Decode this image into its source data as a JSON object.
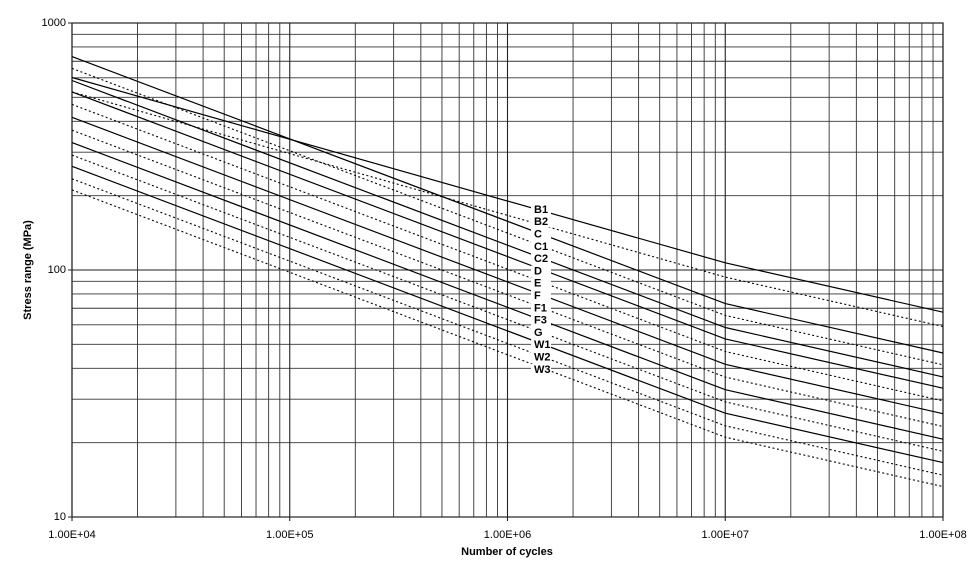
{
  "chart_data": {
    "type": "line",
    "xlabel": "Number of cycles",
    "ylabel": "Stress range (MPa)",
    "xscale": "log",
    "yscale": "log",
    "grid": true,
    "x": [
      10000,
      10000000,
      100000000
    ],
    "xlim": [
      10000,
      100000000
    ],
    "ylim": [
      10,
      1000
    ],
    "xticks": [
      {
        "value": 10000,
        "label": "1.00E+04"
      },
      {
        "value": 100000,
        "label": "1.00E+05"
      },
      {
        "value": 1000000,
        "label": "1.00E+06"
      },
      {
        "value": 10000000,
        "label": "1.00E+07"
      },
      {
        "value": 100000000,
        "label": "1.00E+08"
      }
    ],
    "xminorticks": [
      20000,
      30000,
      40000,
      50000,
      60000,
      70000,
      80000,
      90000,
      200000,
      300000,
      400000,
      500000,
      600000,
      700000,
      800000,
      900000,
      2000000,
      3000000,
      4000000,
      5000000,
      6000000,
      7000000,
      8000000,
      9000000,
      20000000,
      30000000,
      40000000,
      50000000,
      60000000,
      70000000,
      80000000,
      90000000
    ],
    "yticks": [
      10,
      100,
      1000
    ],
    "yminorticks": [
      20,
      30,
      40,
      50,
      60,
      70,
      80,
      90,
      200,
      300,
      400,
      500,
      600,
      700,
      800,
      900
    ],
    "series": [
      {
        "name": "B1",
        "color": "#000000",
        "style": "solid",
        "values": [
          601.5,
          106.97,
          67.5
        ]
      },
      {
        "name": "B2",
        "color": "#000000",
        "style": "dotted",
        "values": [
          526.3,
          93.59,
          59.05
        ]
      },
      {
        "name": "C",
        "color": "#000000",
        "style": "solid",
        "values": [
          731,
          73.1,
          46.12
        ]
      },
      {
        "name": "C1",
        "color": "#000000",
        "style": "dotted",
        "values": [
          655,
          65.5,
          41.33
        ]
      },
      {
        "name": "C2",
        "color": "#000000",
        "style": "solid",
        "values": [
          585,
          58.48,
          36.9
        ]
      },
      {
        "name": "D",
        "color": "#000000",
        "style": "solid",
        "values": [
          526,
          52.63,
          33.21
        ]
      },
      {
        "name": "E",
        "color": "#000000",
        "style": "dotted",
        "values": [
          468,
          46.78,
          29.52
        ]
      },
      {
        "name": "F",
        "color": "#000000",
        "style": "solid",
        "values": [
          415,
          41.52,
          26.2
        ]
      },
      {
        "name": "F1",
        "color": "#000000",
        "style": "dotted",
        "values": [
          368,
          36.84,
          23.24
        ]
      },
      {
        "name": "F3",
        "color": "#000000",
        "style": "solid",
        "values": [
          328,
          32.75,
          20.66
        ]
      },
      {
        "name": "G",
        "color": "#000000",
        "style": "dotted",
        "values": [
          292,
          29.24,
          18.45
        ]
      },
      {
        "name": "W1",
        "color": "#000000",
        "style": "solid",
        "values": [
          263,
          26.32,
          16.61
        ]
      },
      {
        "name": "W2",
        "color": "#000000",
        "style": "dotted",
        "values": [
          234,
          23.39,
          14.76
        ]
      },
      {
        "name": "W3",
        "color": "#000000",
        "style": "dotted",
        "values": [
          211,
          21.05,
          13.28
        ]
      }
    ]
  }
}
